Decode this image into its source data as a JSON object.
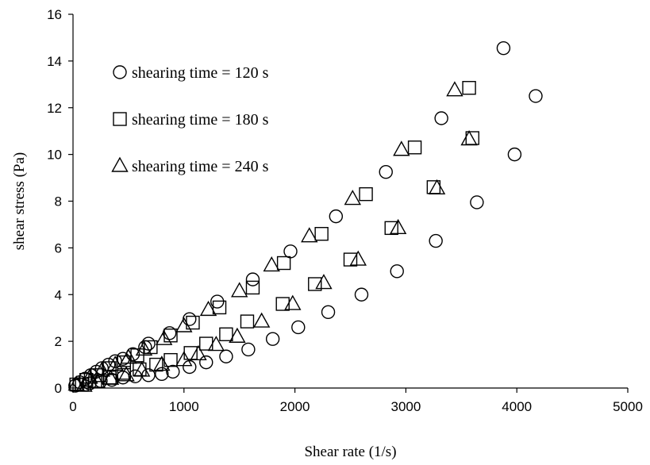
{
  "chart_data": {
    "type": "scatter",
    "title": "",
    "xlabel": "Shear rate (1/s)",
    "ylabel": "shear stress (Pa)",
    "xlim": [
      0,
      5000
    ],
    "ylim": [
      0,
      16
    ],
    "xticks": [
      0,
      1000,
      2000,
      3000,
      4000,
      5000
    ],
    "yticks": [
      0,
      2,
      4,
      6,
      8,
      10,
      12,
      14,
      16
    ],
    "grid": false,
    "legend_position": "top-left",
    "series": [
      {
        "name": "shearing time = 120 s",
        "marker": "circle",
        "points": [
          [
            20,
            0.1
          ],
          [
            60,
            0.25
          ],
          [
            110,
            0.4
          ],
          [
            160,
            0.55
          ],
          [
            210,
            0.7
          ],
          [
            260,
            0.85
          ],
          [
            320,
            1.0
          ],
          [
            380,
            1.15
          ],
          [
            450,
            1.25
          ],
          [
            540,
            1.45
          ],
          [
            650,
            1.75
          ],
          [
            680,
            1.9
          ],
          [
            870,
            2.35
          ],
          [
            1050,
            2.95
          ],
          [
            1300,
            3.7
          ],
          [
            1620,
            4.65
          ],
          [
            1960,
            5.85
          ],
          [
            2370,
            7.35
          ],
          [
            2820,
            9.25
          ],
          [
            3320,
            11.55
          ],
          [
            3880,
            14.55
          ],
          [
            150,
            0.2
          ],
          [
            250,
            0.3
          ],
          [
            350,
            0.35
          ],
          [
            450,
            0.45
          ],
          [
            560,
            0.5
          ],
          [
            680,
            0.55
          ],
          [
            800,
            0.6
          ],
          [
            900,
            0.7
          ],
          [
            1050,
            0.9
          ],
          [
            1200,
            1.1
          ],
          [
            1380,
            1.35
          ],
          [
            1580,
            1.65
          ],
          [
            1800,
            2.1
          ],
          [
            2030,
            2.6
          ],
          [
            2300,
            3.25
          ],
          [
            2600,
            4.0
          ],
          [
            2920,
            5.0
          ],
          [
            3270,
            6.3
          ],
          [
            3640,
            7.95
          ],
          [
            3980,
            10.0
          ],
          [
            4170,
            12.5
          ]
        ]
      },
      {
        "name": "shearing time = 180 s",
        "marker": "square",
        "points": [
          [
            30,
            0.15
          ],
          [
            120,
            0.35
          ],
          [
            220,
            0.55
          ],
          [
            330,
            0.85
          ],
          [
            460,
            1.1
          ],
          [
            580,
            1.4
          ],
          [
            700,
            1.75
          ],
          [
            880,
            2.25
          ],
          [
            1080,
            2.8
          ],
          [
            1320,
            3.45
          ],
          [
            1620,
            4.3
          ],
          [
            1900,
            5.35
          ],
          [
            2240,
            6.6
          ],
          [
            2640,
            8.3
          ],
          [
            3080,
            10.3
          ],
          [
            3570,
            12.85
          ],
          [
            80,
            0.15
          ],
          [
            200,
            0.3
          ],
          [
            330,
            0.45
          ],
          [
            460,
            0.65
          ],
          [
            600,
            0.8
          ],
          [
            750,
            1.0
          ],
          [
            880,
            1.2
          ],
          [
            1060,
            1.5
          ],
          [
            1200,
            1.9
          ],
          [
            1380,
            2.3
          ],
          [
            1570,
            2.85
          ],
          [
            1890,
            3.6
          ],
          [
            2180,
            4.45
          ],
          [
            2500,
            5.5
          ],
          [
            2870,
            6.85
          ],
          [
            3250,
            8.6
          ],
          [
            3600,
            10.7
          ]
        ]
      },
      {
        "name": "shearing time = 240 s",
        "marker": "triangle",
        "points": [
          [
            30,
            0.15
          ],
          [
            150,
            0.45
          ],
          [
            260,
            0.75
          ],
          [
            380,
            1.0
          ],
          [
            500,
            1.3
          ],
          [
            640,
            1.65
          ],
          [
            820,
            2.1
          ],
          [
            1000,
            2.65
          ],
          [
            1220,
            3.35
          ],
          [
            1500,
            4.15
          ],
          [
            1790,
            5.25
          ],
          [
            2130,
            6.5
          ],
          [
            2520,
            8.1
          ],
          [
            2960,
            10.2
          ],
          [
            3440,
            12.75
          ],
          [
            100,
            0.1
          ],
          [
            220,
            0.25
          ],
          [
            340,
            0.4
          ],
          [
            480,
            0.55
          ],
          [
            620,
            0.75
          ],
          [
            800,
            1.0
          ],
          [
            1000,
            1.2
          ],
          [
            1130,
            1.45
          ],
          [
            1290,
            1.85
          ],
          [
            1480,
            2.2
          ],
          [
            1700,
            2.85
          ],
          [
            1980,
            3.6
          ],
          [
            2260,
            4.5
          ],
          [
            2570,
            5.5
          ],
          [
            2930,
            6.85
          ],
          [
            3280,
            8.55
          ],
          [
            3570,
            10.65
          ]
        ]
      }
    ]
  }
}
